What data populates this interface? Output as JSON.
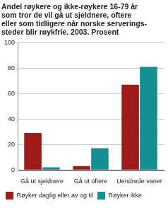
{
  "chart_data": {
    "type": "bar",
    "title": [
      "Andel røykere og ikke-røykere 16-79 år",
      "som tror de vil gå ut sjeldnere, oftere",
      "eller som tidligere når norske serverings-",
      "steder blir røykfrie. 2003. Prosent"
    ],
    "categories": [
      "Gå ut sjeldnere",
      "Gå ut oftere",
      "Uendrede vaner"
    ],
    "series": [
      {
        "name": "Røyker daglig eller av og til",
        "color": "#9e1b1b",
        "values": [
          29,
          3,
          67
        ]
      },
      {
        "name": "Røyker ikke",
        "color": "#13908f",
        "values": [
          2,
          17,
          81
        ]
      }
    ],
    "ylim": [
      0,
      100
    ],
    "yticks": [
      0,
      20,
      40,
      60,
      80,
      100
    ],
    "grid": true,
    "legend": "bottom"
  }
}
